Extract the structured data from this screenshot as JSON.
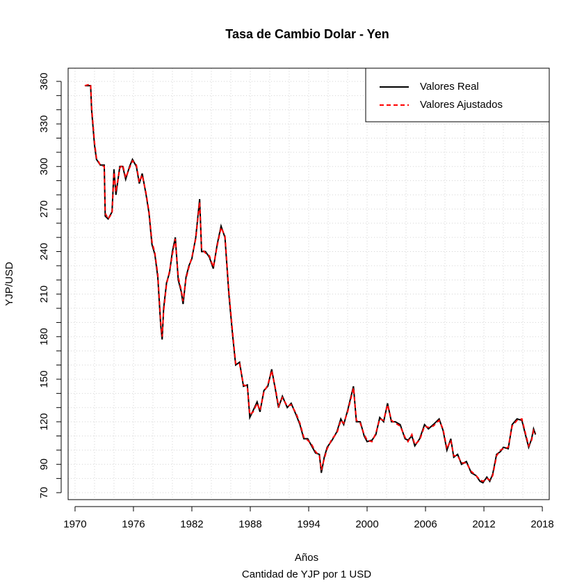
{
  "chart_data": {
    "type": "line",
    "title": "Tasa de Cambio Dolar - Yen",
    "x_label": "Años",
    "subtitle": "Cantidad de YJP por 1 USD",
    "y_label": "YJP/USD",
    "x": [
      1971.0,
      1971.6,
      1971.7,
      1972.0,
      1972.2,
      1972.6,
      1973.0,
      1973.1,
      1973.4,
      1973.8,
      1974.0,
      1974.2,
      1974.6,
      1974.9,
      1975.2,
      1975.6,
      1975.9,
      1976.3,
      1976.6,
      1976.9,
      1977.3,
      1977.6,
      1977.9,
      1978.2,
      1978.5,
      1978.8,
      1978.95,
      1979.1,
      1979.4,
      1979.7,
      1980.0,
      1980.3,
      1980.6,
      1980.9,
      1981.1,
      1981.4,
      1981.7,
      1982.0,
      1982.4,
      1982.8,
      1983.0,
      1983.4,
      1983.8,
      1984.2,
      1984.6,
      1985.0,
      1985.4,
      1985.8,
      1986.2,
      1986.5,
      1986.9,
      1987.3,
      1987.7,
      1987.95,
      1988.3,
      1988.7,
      1989.0,
      1989.4,
      1989.8,
      1990.2,
      1990.6,
      1990.9,
      1991.3,
      1991.8,
      1992.2,
      1992.7,
      1993.1,
      1993.5,
      1993.9,
      1994.3,
      1994.7,
      1995.1,
      1995.3,
      1995.6,
      1995.9,
      1996.4,
      1996.9,
      1997.3,
      1997.6,
      1998.0,
      1998.6,
      1998.9,
      1999.3,
      1999.7,
      2000.0,
      2000.5,
      2000.9,
      2001.3,
      2001.7,
      2002.1,
      2002.5,
      2002.9,
      2003.4,
      2003.9,
      2004.2,
      2004.6,
      2004.9,
      2005.4,
      2005.9,
      2006.3,
      2006.8,
      2007.4,
      2007.8,
      2008.2,
      2008.6,
      2008.9,
      2009.3,
      2009.7,
      2010.2,
      2010.7,
      2011.2,
      2011.6,
      2011.9,
      2012.3,
      2012.6,
      2012.9,
      2013.3,
      2013.7,
      2014.0,
      2014.5,
      2014.9,
      2015.4,
      2015.9,
      2016.3,
      2016.6,
      2016.9,
      2017.1,
      2017.3
    ],
    "series": [
      {
        "name": "Valores Real",
        "color": "#000000",
        "dash": false,
        "values": [
          357,
          357,
          340,
          315,
          305,
          301,
          301,
          265,
          263,
          268,
          298,
          280,
          300,
          300,
          291,
          300,
          305,
          300,
          288,
          295,
          280,
          267,
          245,
          238,
          222,
          188,
          178,
          200,
          218,
          225,
          240,
          250,
          220,
          212,
          203,
          222,
          230,
          235,
          250,
          277,
          240,
          240,
          236,
          228,
          245,
          258,
          250,
          210,
          180,
          160,
          162,
          145,
          146,
          123,
          128,
          134,
          127,
          142,
          145,
          157,
          142,
          130,
          138,
          130,
          133,
          125,
          118,
          108,
          108,
          103,
          98,
          97,
          84,
          95,
          102,
          107,
          113,
          122,
          118,
          128,
          145,
          120,
          120,
          110,
          106,
          107,
          111,
          123,
          120,
          133,
          120,
          120,
          118,
          108,
          107,
          110,
          103,
          108,
          118,
          115,
          118,
          122,
          114,
          100,
          108,
          95,
          97,
          90,
          92,
          84,
          82,
          78,
          77,
          81,
          78,
          83,
          97,
          99,
          102,
          101,
          118,
          122,
          121,
          110,
          102,
          108,
          115,
          111
        ]
      },
      {
        "name": "Valores Ajustados",
        "color": "#ff0000",
        "dash": true,
        "values": [
          357,
          358,
          342,
          317,
          306,
          301,
          300,
          267,
          263,
          267,
          296,
          282,
          299,
          301,
          292,
          299,
          304,
          301,
          289,
          294,
          281,
          268,
          247,
          239,
          224,
          190,
          180,
          198,
          217,
          226,
          238,
          249,
          222,
          213,
          205,
          221,
          229,
          236,
          249,
          275,
          242,
          239,
          237,
          229,
          244,
          257,
          251,
          212,
          182,
          161,
          161,
          146,
          145,
          125,
          127,
          133,
          128,
          141,
          146,
          156,
          143,
          131,
          137,
          131,
          132,
          126,
          119,
          109,
          107,
          104,
          99,
          96,
          86,
          94,
          101,
          108,
          112,
          121,
          119,
          127,
          144,
          121,
          119,
          111,
          107,
          106,
          112,
          122,
          121,
          132,
          121,
          119,
          117,
          109,
          106,
          111,
          104,
          107,
          117,
          116,
          117,
          121,
          115,
          101,
          107,
          96,
          96,
          91,
          91,
          85,
          82,
          79,
          78,
          80,
          79,
          82,
          96,
          100,
          101,
          102,
          117,
          121,
          122,
          111,
          103,
          107,
          114,
          112
        ]
      }
    ],
    "xlim": [
      1969.29,
      2018.71
    ],
    "ylim": [
      65.1,
      369.3
    ],
    "xticks": [
      1970,
      1976,
      1982,
      1988,
      1994,
      2000,
      2006,
      2012,
      2018
    ],
    "xgrid": [
      1970,
      1972,
      1974,
      1976,
      1978,
      1980,
      1982,
      1984,
      1986,
      1988,
      1990,
      1992,
      1994,
      1996,
      1998,
      2000,
      2002,
      2004,
      2006,
      2008,
      2010,
      2012,
      2014,
      2016,
      2018
    ],
    "yticks": [
      70,
      90,
      120,
      150,
      180,
      210,
      240,
      270,
      300,
      330,
      360
    ],
    "yminor": [
      80,
      100,
      110,
      130,
      140,
      160,
      170,
      190,
      200,
      220,
      230,
      250,
      260,
      280,
      290,
      310,
      320,
      340,
      350
    ],
    "grid": true,
    "legend": "top-right"
  }
}
